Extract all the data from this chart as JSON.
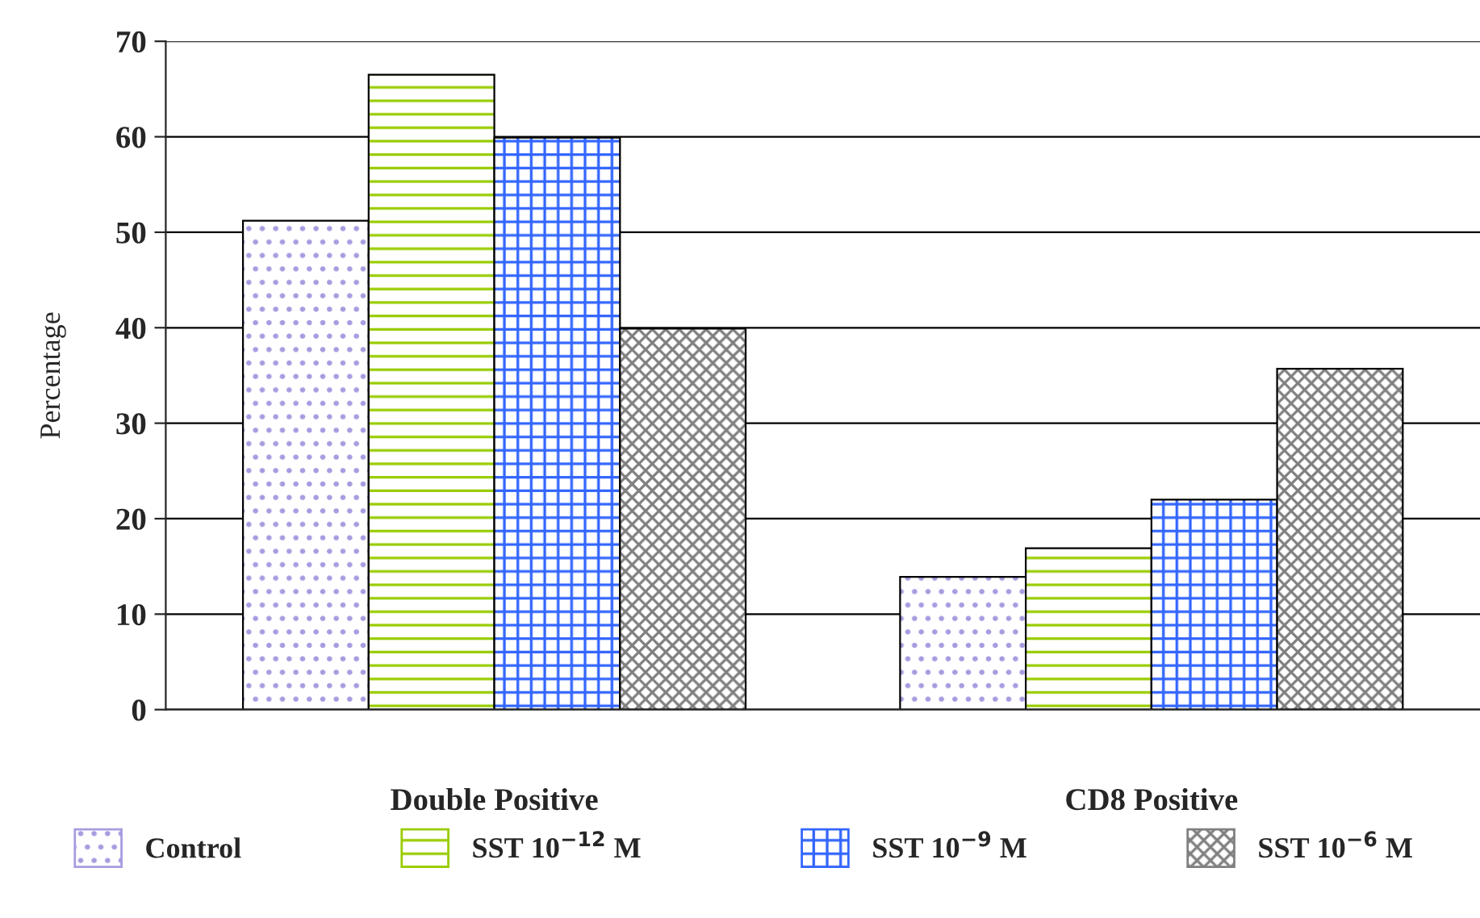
{
  "chart_data": {
    "type": "bar",
    "ylabel": "Percentage",
    "categories": [
      "Double Positive",
      "CD8 Positive"
    ],
    "series": [
      {
        "name": "Control",
        "color": "#a99be0",
        "values": [
          51.2,
          13.9
        ]
      },
      {
        "name": "SST 10$^{−12}$ M",
        "color": "#99cc00",
        "values": [
          66.5,
          16.9
        ]
      },
      {
        "name": "SST 10$^{−9}$ M",
        "color": "#3366ff",
        "values": [
          59.9,
          22.0
        ]
      },
      {
        "name": "SST 10$^{−6}$ M",
        "color": "#808080",
        "values": [
          39.9,
          35.7
        ]
      }
    ],
    "ylim": [
      0,
      70
    ],
    "yticks": [
      0,
      10,
      20,
      30,
      40,
      50,
      60,
      70
    ],
    "grid": "y",
    "legend": "bottom"
  }
}
